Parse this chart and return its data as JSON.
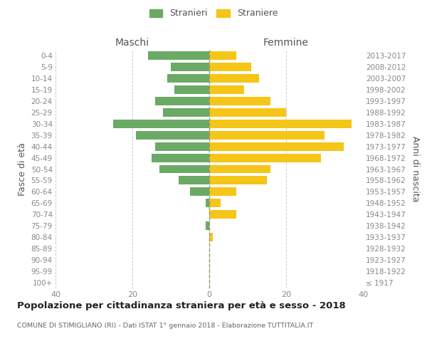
{
  "age_groups": [
    "100+",
    "95-99",
    "90-94",
    "85-89",
    "80-84",
    "75-79",
    "70-74",
    "65-69",
    "60-64",
    "55-59",
    "50-54",
    "45-49",
    "40-44",
    "35-39",
    "30-34",
    "25-29",
    "20-24",
    "15-19",
    "10-14",
    "5-9",
    "0-4"
  ],
  "birth_years": [
    "≤ 1917",
    "1918-1922",
    "1923-1927",
    "1928-1932",
    "1933-1937",
    "1938-1942",
    "1943-1947",
    "1948-1952",
    "1953-1957",
    "1958-1962",
    "1963-1967",
    "1968-1972",
    "1973-1977",
    "1978-1982",
    "1983-1987",
    "1988-1992",
    "1993-1997",
    "1998-2002",
    "2003-2007",
    "2008-2012",
    "2013-2017"
  ],
  "maschi": [
    0,
    0,
    0,
    0,
    0,
    1,
    0,
    1,
    5,
    8,
    13,
    15,
    14,
    19,
    25,
    12,
    14,
    9,
    11,
    10,
    16
  ],
  "femmine": [
    0,
    0,
    0,
    0,
    1,
    0,
    7,
    3,
    7,
    15,
    16,
    29,
    35,
    30,
    37,
    20,
    16,
    9,
    13,
    11,
    7
  ],
  "maschi_color": "#6aaa64",
  "femmine_color": "#f5c518",
  "grid_color": "#cccccc",
  "centerline_color": "#999966",
  "title": "Popolazione per cittadinanza straniera per età e sesso - 2018",
  "subtitle": "COMUNE DI STIMIGLIANO (RI) - Dati ISTAT 1° gennaio 2018 - Elaborazione TUTTITALIA.IT",
  "ylabel_left": "Fasce di età",
  "ylabel_right": "Anni di nascita",
  "xlabel_maschi": "Maschi",
  "xlabel_femmine": "Femmine",
  "legend_maschi": "Stranieri",
  "legend_femmine": "Straniere",
  "xlim": 40,
  "bar_height": 0.75,
  "tick_color": "#888888",
  "label_color": "#555555",
  "title_color": "#222222",
  "subtitle_color": "#666666"
}
